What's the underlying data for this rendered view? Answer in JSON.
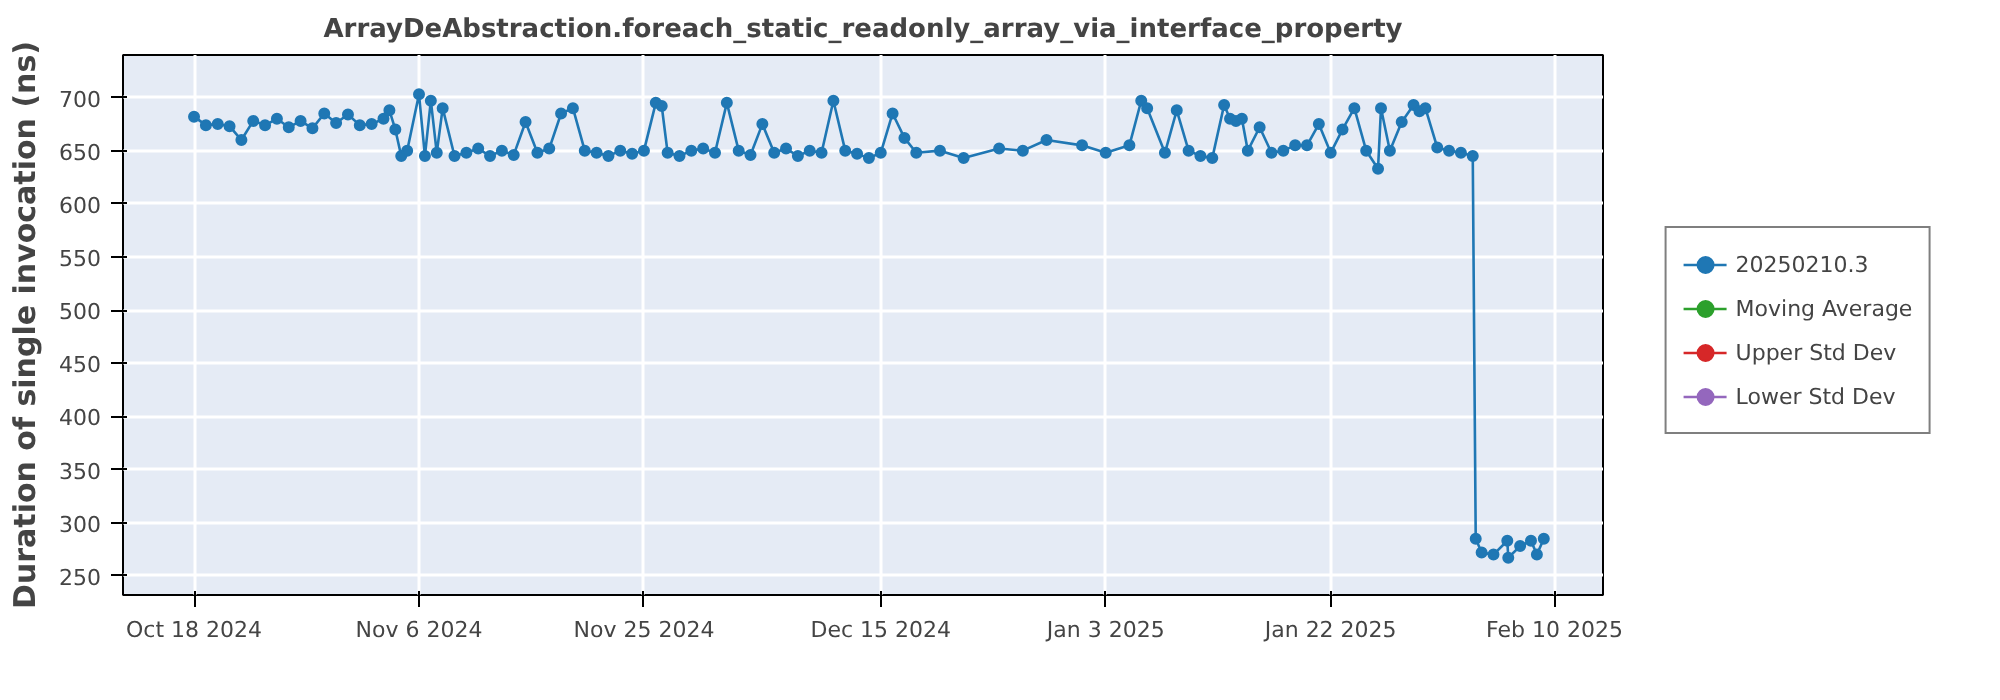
{
  "chart_data": {
    "type": "line",
    "title": "ArrayDeAbstraction.foreach_static_readonly_array_via_interface_property",
    "ylabel": "Duration of single invocation (ns)",
    "xlim": [
      "2024-10-12",
      "2025-02-14"
    ],
    "ylim": [
      232,
      740
    ],
    "xticks": [
      {
        "value": "2024-10-18",
        "label": "Oct 18 2024"
      },
      {
        "value": "2024-11-06",
        "label": "Nov 6 2024"
      },
      {
        "value": "2024-11-25",
        "label": "Nov 25 2024"
      },
      {
        "value": "2024-12-15",
        "label": "Dec 15 2024"
      },
      {
        "value": "2025-01-03",
        "label": "Jan 3 2025"
      },
      {
        "value": "2025-01-22",
        "label": "Jan 22 2025"
      },
      {
        "value": "2025-02-10",
        "label": "Feb 10 2025"
      }
    ],
    "yticks": [
      250,
      300,
      350,
      400,
      450,
      500,
      550,
      600,
      650,
      700
    ],
    "grid": true,
    "legend": "right",
    "marker": "circle",
    "line_style": "solid",
    "series": [
      {
        "name": "20250210.3",
        "color": "#1f77b4",
        "x": [
          "2024-10-18",
          "2024-10-19",
          "2024-10-20",
          "2024-10-21",
          "2024-10-22",
          "2024-10-23",
          "2024-10-24",
          "2024-10-25",
          "2024-10-26",
          "2024-10-27",
          "2024-10-28",
          "2024-10-29",
          "2024-10-30",
          "2024-10-31",
          "2024-11-01",
          "2024-11-02",
          "2024-11-03",
          "2024-11-03T12:00",
          "2024-11-04",
          "2024-11-04T12:00",
          "2024-11-05",
          "2024-11-06",
          "2024-11-06T12:00",
          "2024-11-07",
          "2024-11-07T12:00",
          "2024-11-08",
          "2024-11-09",
          "2024-11-10",
          "2024-11-11",
          "2024-11-12",
          "2024-11-13",
          "2024-11-14",
          "2024-11-15",
          "2024-11-16",
          "2024-11-17",
          "2024-11-18",
          "2024-11-19",
          "2024-11-20",
          "2024-11-21",
          "2024-11-22",
          "2024-11-23",
          "2024-11-24",
          "2024-11-25",
          "2024-11-26",
          "2024-11-26T12:00",
          "2024-11-27",
          "2024-11-28",
          "2024-11-29",
          "2024-11-30",
          "2024-12-01",
          "2024-12-02",
          "2024-12-03",
          "2024-12-04",
          "2024-12-05",
          "2024-12-06",
          "2024-12-07",
          "2024-12-08",
          "2024-12-09",
          "2024-12-10",
          "2024-12-11",
          "2024-12-12",
          "2024-12-13",
          "2024-12-14",
          "2024-12-15",
          "2024-12-16",
          "2024-12-17",
          "2024-12-18",
          "2024-12-20",
          "2024-12-22",
          "2024-12-25",
          "2024-12-27",
          "2024-12-29",
          "2025-01-01",
          "2025-01-03",
          "2025-01-05",
          "2025-01-06",
          "2025-01-06T12:00",
          "2025-01-08",
          "2025-01-09",
          "2025-01-10",
          "2025-01-11",
          "2025-01-12",
          "2025-01-13",
          "2025-01-13T12:00",
          "2025-01-14",
          "2025-01-14T12:00",
          "2025-01-15",
          "2025-01-16",
          "2025-01-17",
          "2025-01-18",
          "2025-01-19",
          "2025-01-20",
          "2025-01-21",
          "2025-01-22",
          "2025-01-23",
          "2025-01-24",
          "2025-01-25",
          "2025-01-26",
          "2025-01-26T06:00",
          "2025-01-27",
          "2025-01-28",
          "2025-01-29",
          "2025-01-29T12:00",
          "2025-01-30",
          "2025-01-31",
          "2025-02-01",
          "2025-02-02",
          "2025-02-03",
          "2025-02-03T06:00",
          "2025-02-03T18:00",
          "2025-02-04T18:00",
          "2025-02-05T22:00",
          "2025-02-06",
          "2025-02-07",
          "2025-02-07T22:00",
          "2025-02-08T10:00",
          "2025-02-09"
        ],
        "values": [
          682,
          674,
          675,
          673,
          660,
          678,
          674,
          680,
          672,
          678,
          671,
          685,
          676,
          684,
          674,
          675,
          680,
          688,
          670,
          645,
          650,
          703,
          645,
          697,
          648,
          690,
          645,
          648,
          652,
          645,
          650,
          646,
          677,
          648,
          652,
          685,
          690,
          650,
          648,
          645,
          650,
          647,
          650,
          695,
          692,
          648,
          645,
          650,
          652,
          648,
          695,
          650,
          646,
          675,
          648,
          652,
          645,
          650,
          648,
          697,
          650,
          647,
          643,
          648,
          685,
          662,
          648,
          650,
          643,
          652,
          650,
          660,
          655,
          648,
          655,
          697,
          690,
          648,
          688,
          650,
          645,
          643,
          693,
          680,
          678,
          680,
          650,
          672,
          648,
          650,
          655,
          655,
          675,
          648,
          670,
          690,
          650,
          633,
          690,
          650,
          677,
          693,
          687,
          690,
          653,
          650,
          648,
          645,
          285,
          272,
          270,
          283,
          267,
          278,
          283,
          270,
          285
        ]
      },
      {
        "name": "Moving Average",
        "color": "#2ca02c"
      },
      {
        "name": "Upper Std Dev",
        "color": "#d62728"
      },
      {
        "name": "Lower Std Dev",
        "color": "#9467bd"
      }
    ]
  }
}
